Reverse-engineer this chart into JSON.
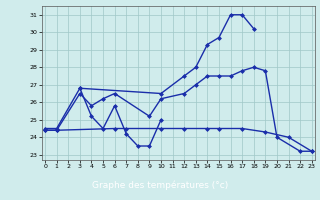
{
  "xlabel": "Graphe des températures (°c)",
  "bg_color": "#d0ecec",
  "grid_color": "#a0c8c8",
  "line_color": "#1a2eaa",
  "label_bg": "#1a3a99",
  "label_fg": "#ffffff",
  "xlim": [
    -0.3,
    23.3
  ],
  "ylim": [
    22.7,
    31.5
  ],
  "xticks": [
    0,
    1,
    2,
    3,
    4,
    5,
    6,
    7,
    8,
    9,
    10,
    11,
    12,
    13,
    14,
    15,
    16,
    17,
    18,
    19,
    20,
    21,
    22,
    23
  ],
  "yticks": [
    23,
    24,
    25,
    26,
    27,
    28,
    29,
    30,
    31
  ],
  "line_A_x": [
    3,
    10,
    12,
    13,
    14,
    15,
    16,
    17,
    18
  ],
  "line_A_y": [
    26.8,
    26.5,
    27.5,
    28.0,
    29.3,
    29.7,
    31.0,
    31.0,
    30.2
  ],
  "line_B_x": [
    0,
    1,
    3,
    4,
    5,
    6,
    7,
    8,
    9,
    10
  ],
  "line_B_y": [
    24.5,
    24.5,
    26.8,
    25.2,
    24.5,
    25.8,
    24.2,
    23.5,
    23.5,
    25.0
  ],
  "line_C_x": [
    0,
    1,
    3,
    4,
    5,
    6,
    9,
    10,
    12,
    13,
    14,
    15,
    16,
    17,
    18,
    19,
    20,
    22,
    23
  ],
  "line_C_y": [
    24.4,
    24.4,
    26.5,
    25.8,
    26.2,
    26.5,
    25.2,
    26.2,
    26.5,
    27.0,
    27.5,
    27.5,
    27.5,
    27.8,
    28.0,
    27.8,
    24.0,
    23.2,
    23.2
  ],
  "line_D_x": [
    0,
    1,
    6,
    7,
    10,
    12,
    14,
    15,
    17,
    19,
    21,
    23
  ],
  "line_D_y": [
    24.4,
    24.4,
    24.5,
    24.5,
    24.5,
    24.5,
    24.5,
    24.5,
    24.5,
    24.3,
    24.0,
    23.2
  ]
}
